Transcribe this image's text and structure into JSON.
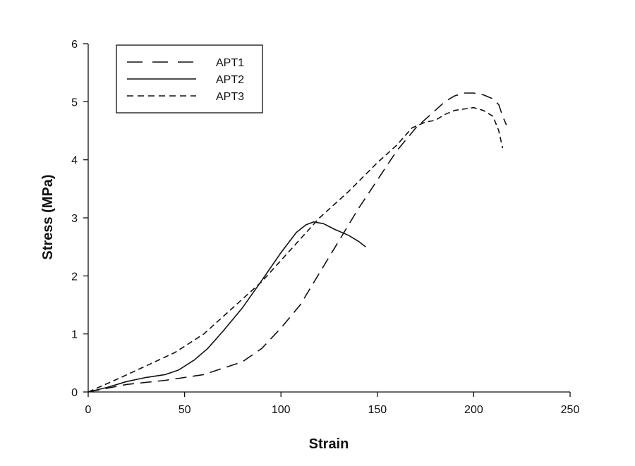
{
  "chart_data": {
    "type": "line",
    "title": "",
    "xlabel": "Strain",
    "ylabel": "Stress (MPa)",
    "xlim": [
      0,
      250
    ],
    "ylim": [
      0,
      6
    ],
    "xticks": [
      0,
      50,
      100,
      150,
      200,
      250
    ],
    "yticks": [
      0,
      1,
      2,
      3,
      4,
      5,
      6
    ],
    "grid": false,
    "legend": "top-left",
    "series": [
      {
        "name": "APT1",
        "dash": "long-dash",
        "x": [
          0,
          20,
          40,
          60,
          80,
          90,
          100,
          110,
          120,
          130,
          140,
          150,
          160,
          170,
          175,
          180,
          185,
          190,
          195,
          200,
          205,
          210,
          213,
          215,
          217
        ],
        "y": [
          0,
          0.13,
          0.2,
          0.3,
          0.52,
          0.75,
          1.1,
          1.5,
          2.05,
          2.6,
          3.15,
          3.65,
          4.15,
          4.55,
          4.7,
          4.85,
          5.0,
          5.1,
          5.15,
          5.15,
          5.12,
          5.05,
          4.95,
          4.75,
          4.6
        ]
      },
      {
        "name": "APT2",
        "dash": "solid",
        "x": [
          0,
          10,
          20,
          30,
          40,
          47,
          55,
          62,
          70,
          80,
          90,
          100,
          108,
          113,
          117,
          122,
          128,
          135,
          140,
          144
        ],
        "y": [
          0,
          0.08,
          0.18,
          0.25,
          0.3,
          0.38,
          0.55,
          0.75,
          1.05,
          1.45,
          1.92,
          2.4,
          2.75,
          2.88,
          2.93,
          2.9,
          2.8,
          2.7,
          2.6,
          2.5
        ],
        "connect": false
      },
      {
        "name": "APT3",
        "dash": "short-dash",
        "x": [
          0,
          15,
          30,
          45,
          60,
          75,
          90,
          105,
          120,
          135,
          150,
          160,
          168,
          175,
          180,
          185,
          190,
          200,
          205,
          210,
          213,
          215
        ],
        "y": [
          0,
          0.22,
          0.45,
          0.68,
          1.0,
          1.45,
          1.9,
          2.45,
          3.0,
          3.45,
          3.95,
          4.25,
          4.55,
          4.65,
          4.68,
          4.78,
          4.85,
          4.9,
          4.85,
          4.75,
          4.5,
          4.2
        ]
      }
    ]
  }
}
